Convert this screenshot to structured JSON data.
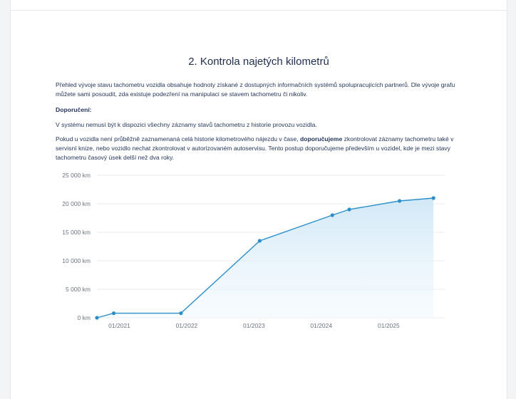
{
  "section": {
    "title": "2. Kontrola najetých kilometrů"
  },
  "paragraphs": {
    "intro": "Přehled vývoje stavu tachometru vozidla obsahuje hodnoty získané z dostupných informačních systémů spolupracujících partnerů. Dle vývoje grafu můžete sami posoudit, zda existuje podezření na manipulaci se stavem tachometru či nikoliv.",
    "recommend_heading": "Doporučení:",
    "note": "V systému nemusí být k dispozici všechny záznamy stavů tachometru z historie provozu vozidla.",
    "advice_part1": "Pokud u vozidla není průběžně zaznamenaná celá historie kilometrového nájezdu v čase, ",
    "advice_bold": "doporučujeme",
    "advice_part2": " zkontrolovat záznamy tachometru také v servisní knize, nebo vozidlo nechat zkontrolovat v autorizovaném autoservisu. Tento postup doporučujeme především u vozidel, kde je mezi stavy tachometru časový úsek delší než dva roky."
  },
  "chart_data": {
    "type": "area",
    "x_type": "date",
    "y_unit": "km",
    "ylim": [
      0,
      25000
    ],
    "yticks": [
      0,
      5000,
      10000,
      15000,
      20000,
      25000
    ],
    "ytick_labels": [
      "0 km",
      "5 000 km",
      "10 000 km",
      "15 000 km",
      "20 000 km",
      "25 000 km"
    ],
    "xlim": [
      "2020-09-01",
      "2025-11-01"
    ],
    "xticks": [
      "2021-01-01",
      "2022-01-01",
      "2023-01-01",
      "2024-01-01",
      "2025-01-01"
    ],
    "xtick_labels": [
      "01/2021",
      "01/2022",
      "01/2023",
      "01/2024",
      "01/2025"
    ],
    "grid": true,
    "colors": {
      "line": "#2b8fc9",
      "fill": "#d4ebf8",
      "grid": "#eceef1"
    },
    "series": [
      {
        "points": [
          {
            "x": "2020-09-01",
            "y": 0
          },
          {
            "x": "2020-12-01",
            "y": 800
          },
          {
            "x": "2021-12-01",
            "y": 800
          },
          {
            "x": "2023-02-01",
            "y": 13500
          },
          {
            "x": "2024-03-01",
            "y": 18000
          },
          {
            "x": "2024-06-01",
            "y": 19000
          },
          {
            "x": "2025-03-01",
            "y": 20500
          },
          {
            "x": "2025-09-01",
            "y": 21000
          }
        ]
      }
    ]
  }
}
